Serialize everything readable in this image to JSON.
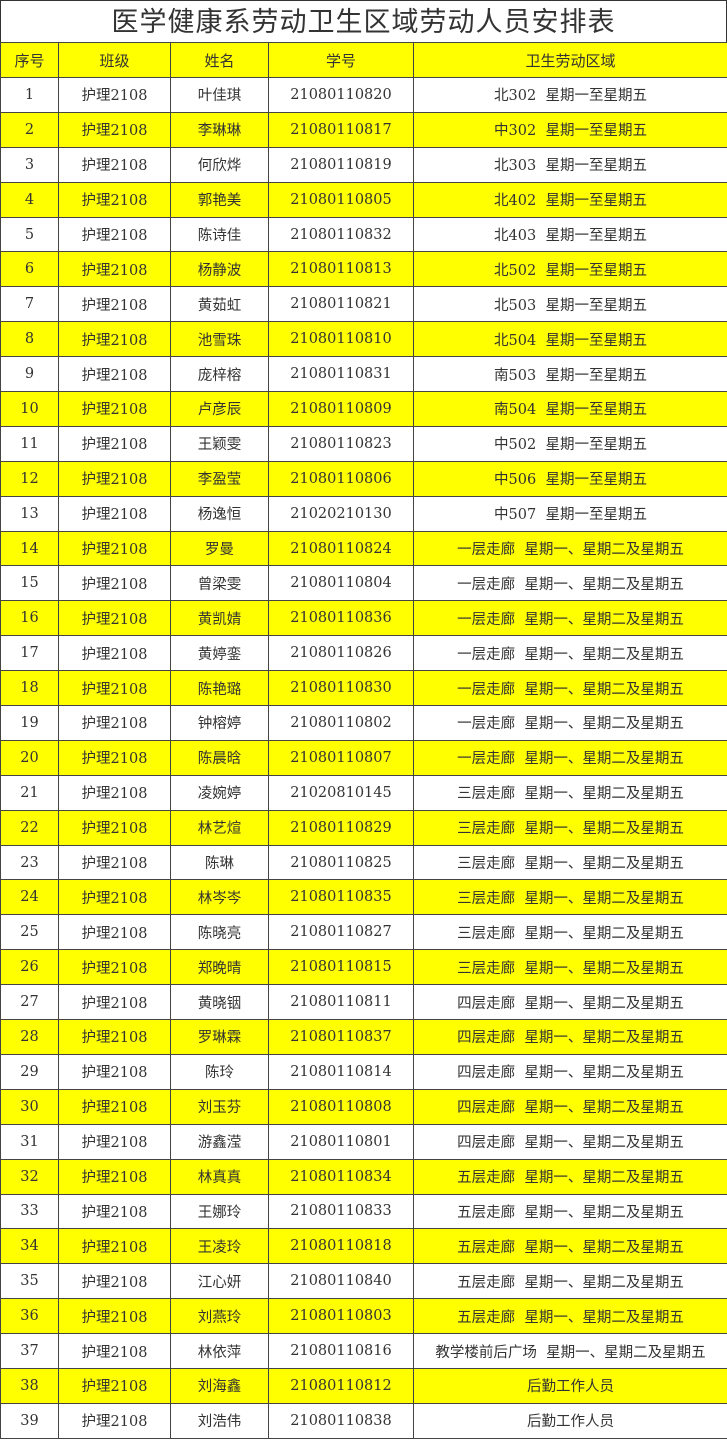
{
  "title": "医学健康系劳动卫生区域劳动人员安排表",
  "highlight_color": "#ffff00",
  "columns": [
    "序号",
    "班级",
    "姓名",
    "学号",
    "卫生劳动区域"
  ],
  "rows": [
    [
      "1",
      "护理2108",
      "叶佳琪",
      "21080110820",
      "北302  星期一至星期五"
    ],
    [
      "2",
      "护理2108",
      "李琳琳",
      "21080110817",
      "中302  星期一至星期五"
    ],
    [
      "3",
      "护理2108",
      "何欣烨",
      "21080110819",
      "北303  星期一至星期五"
    ],
    [
      "4",
      "护理2108",
      "郭艳美",
      "21080110805",
      "北402  星期一至星期五"
    ],
    [
      "5",
      "护理2108",
      "陈诗佳",
      "21080110832",
      "北403  星期一至星期五"
    ],
    [
      "6",
      "护理2108",
      "杨静波",
      "21080110813",
      "北502  星期一至星期五"
    ],
    [
      "7",
      "护理2108",
      "黄茹虹",
      "21080110821",
      "北503  星期一至星期五"
    ],
    [
      "8",
      "护理2108",
      "池雪珠",
      "21080110810",
      "北504  星期一至星期五"
    ],
    [
      "9",
      "护理2108",
      "庞梓榕",
      "21080110831",
      "南503  星期一至星期五"
    ],
    [
      "10",
      "护理2108",
      "卢彦辰",
      "21080110809",
      "南504  星期一至星期五"
    ],
    [
      "11",
      "护理2108",
      "王颖雯",
      "21080110823",
      "中502  星期一至星期五"
    ],
    [
      "12",
      "护理2108",
      "李盈莹",
      "21080110806",
      "中506  星期一至星期五"
    ],
    [
      "13",
      "护理2108",
      "杨逸恒",
      "21020210130",
      "中507  星期一至星期五"
    ],
    [
      "14",
      "护理2108",
      "罗曼",
      "21080110824",
      "一层走廊  星期一、星期二及星期五"
    ],
    [
      "15",
      "护理2108",
      "曾梁雯",
      "21080110804",
      "一层走廊  星期一、星期二及星期五"
    ],
    [
      "16",
      "护理2108",
      "黄凯婧",
      "21080110836",
      "一层走廊  星期一、星期二及星期五"
    ],
    [
      "17",
      "护理2108",
      "黄婷銮",
      "21080110826",
      "一层走廊  星期一、星期二及星期五"
    ],
    [
      "18",
      "护理2108",
      "陈艳璐",
      "21080110830",
      "一层走廊  星期一、星期二及星期五"
    ],
    [
      "19",
      "护理2108",
      "钟榕婷",
      "21080110802",
      "一层走廊  星期一、星期二及星期五"
    ],
    [
      "20",
      "护理2108",
      "陈晨晗",
      "21080110807",
      "一层走廊  星期一、星期二及星期五"
    ],
    [
      "21",
      "护理2108",
      "凌婉婷",
      "21020810145",
      "三层走廊  星期一、星期二及星期五"
    ],
    [
      "22",
      "护理2108",
      "林艺煊",
      "21080110829",
      "三层走廊  星期一、星期二及星期五"
    ],
    [
      "23",
      "护理2108",
      "陈琳",
      "21080110825",
      "三层走廊  星期一、星期二及星期五"
    ],
    [
      "24",
      "护理2108",
      "林岑岑",
      "21080110835",
      "三层走廊  星期一、星期二及星期五"
    ],
    [
      "25",
      "护理2108",
      "陈晓亮",
      "21080110827",
      "三层走廊  星期一、星期二及星期五"
    ],
    [
      "26",
      "护理2108",
      "郑晚晴",
      "21080110815",
      "三层走廊  星期一、星期二及星期五"
    ],
    [
      "27",
      "护理2108",
      "黄晓铟",
      "21080110811",
      "四层走廊  星期一、星期二及星期五"
    ],
    [
      "28",
      "护理2108",
      "罗琳霖",
      "21080110837",
      "四层走廊  星期一、星期二及星期五"
    ],
    [
      "29",
      "护理2108",
      "陈玲",
      "21080110814",
      "四层走廊  星期一、星期二及星期五"
    ],
    [
      "30",
      "护理2108",
      "刘玉芬",
      "21080110808",
      "四层走廊  星期一、星期二及星期五"
    ],
    [
      "31",
      "护理2108",
      "游鑫滢",
      "21080110801",
      "四层走廊  星期一、星期二及星期五"
    ],
    [
      "32",
      "护理2108",
      "林真真",
      "21080110834",
      "五层走廊  星期一、星期二及星期五"
    ],
    [
      "33",
      "护理2108",
      "王娜玲",
      "21080110833",
      "五层走廊  星期一、星期二及星期五"
    ],
    [
      "34",
      "护理2108",
      "王凌玲",
      "21080110818",
      "五层走廊  星期一、星期二及星期五"
    ],
    [
      "35",
      "护理2108",
      "江心妍",
      "21080110840",
      "五层走廊  星期一、星期二及星期五"
    ],
    [
      "36",
      "护理2108",
      "刘燕玲",
      "21080110803",
      "五层走廊  星期一、星期二及星期五"
    ],
    [
      "37",
      "护理2108",
      "林依萍",
      "21080110816",
      "教学楼前后广场  星期一、星期二及星期五"
    ],
    [
      "38",
      "护理2108",
      "刘海鑫",
      "21080110812",
      "后勤工作人员"
    ],
    [
      "39",
      "护理2108",
      "刘浩伟",
      "21080110838",
      "后勤工作人员"
    ]
  ]
}
